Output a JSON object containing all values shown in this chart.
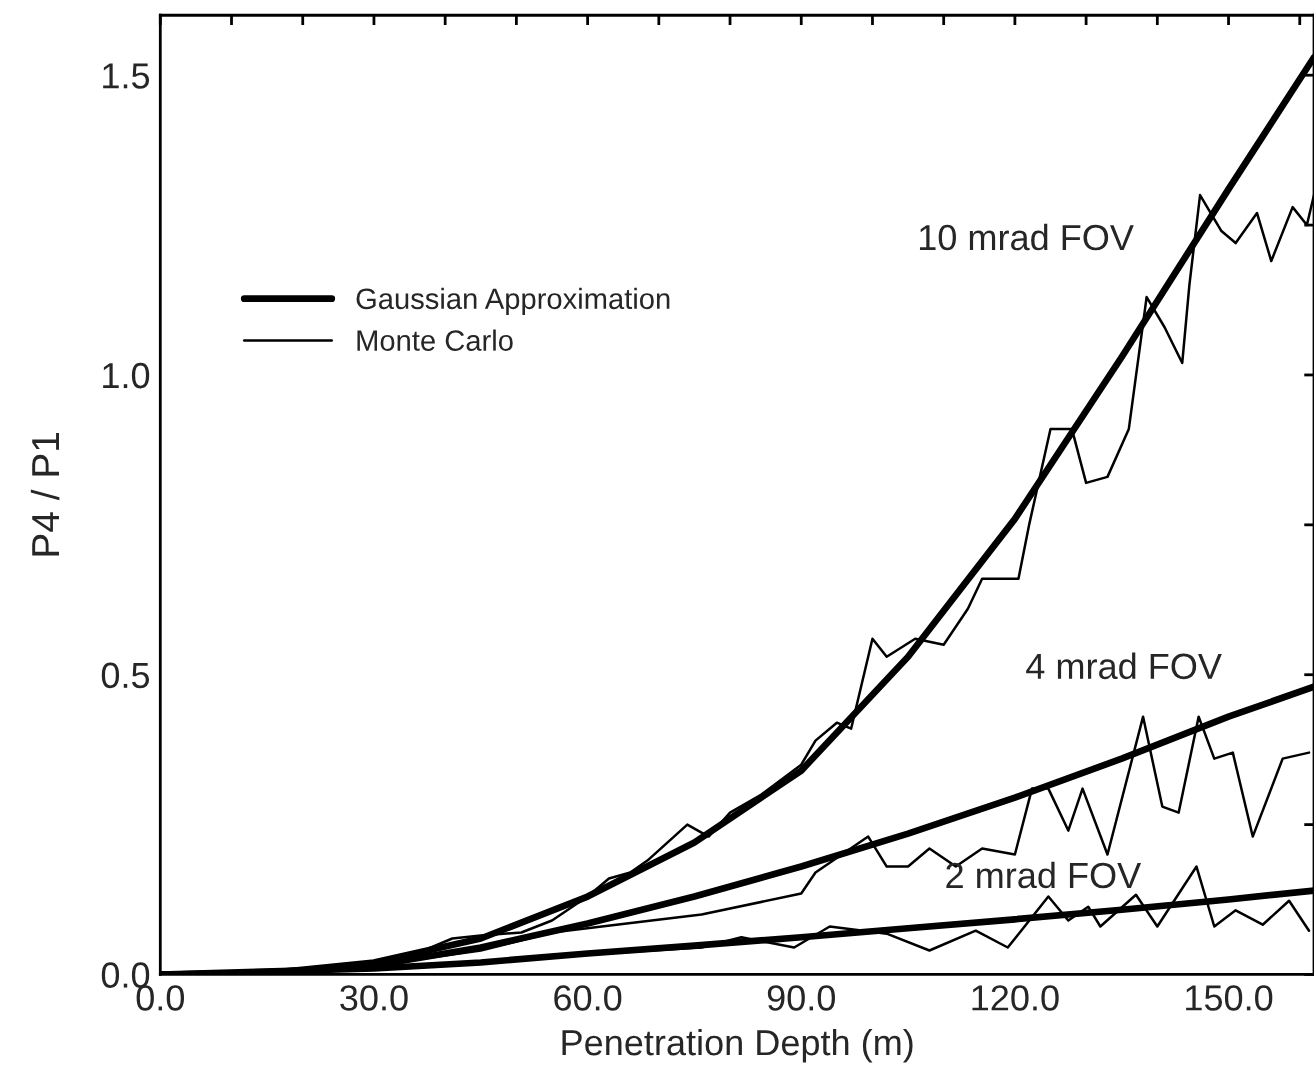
{
  "chart_data": {
    "type": "line",
    "xlabel": "Penetration Depth (m)",
    "ylabel": "P4 / P1",
    "xlim": [
      0,
      162
    ],
    "ylim": [
      0,
      1.6
    ],
    "xticks": [
      {
        "value": 0,
        "label": "0.0"
      },
      {
        "value": 10,
        "label": null
      },
      {
        "value": 20,
        "label": null
      },
      {
        "value": 30,
        "label": "30.0"
      },
      {
        "value": 40,
        "label": null
      },
      {
        "value": 50,
        "label": null
      },
      {
        "value": 60,
        "label": "60.0"
      },
      {
        "value": 70,
        "label": null
      },
      {
        "value": 80,
        "label": null
      },
      {
        "value": 90,
        "label": "90.0"
      },
      {
        "value": 100,
        "label": null
      },
      {
        "value": 110,
        "label": null
      },
      {
        "value": 120,
        "label": "120.0"
      },
      {
        "value": 130,
        "label": null
      },
      {
        "value": 140,
        "label": null
      },
      {
        "value": 150,
        "label": "150.0"
      },
      {
        "value": 160,
        "label": null
      }
    ],
    "yticks": [
      {
        "value": 0,
        "label": "0.0"
      },
      {
        "value": 0.25,
        "label": null
      },
      {
        "value": 0.5,
        "label": "0.5"
      },
      {
        "value": 0.75,
        "label": null
      },
      {
        "value": 1.0,
        "label": "1.0"
      },
      {
        "value": 1.25,
        "label": null
      },
      {
        "value": 1.5,
        "label": "1.5"
      }
    ],
    "legend": "left",
    "grid": false,
    "line_style": "solid",
    "marker": "none",
    "annotations": [
      "10 mrad FOV",
      "4 mrad FOV",
      "2 mrad FOV"
    ],
    "series": [
      {
        "name": "Gaussian Approximation",
        "color": "#000000",
        "x": [
          0,
          15,
          30,
          45,
          60,
          75,
          90,
          105,
          120,
          135,
          150,
          162
        ],
        "values": [
          0,
          0.002,
          0.02,
          0.06,
          0.13,
          0.22,
          0.34,
          0.53,
          0.76,
          1.03,
          1.31,
          1.53
        ]
      },
      {
        "name": "Monte Carlo",
        "color": "#000000",
        "x": [
          0,
          15,
          30,
          37,
          41,
          45,
          50.7,
          55,
          60,
          63,
          66,
          68.4,
          74,
          77,
          80,
          84.4,
          90,
          92,
          95,
          97,
          100,
          102,
          106,
          110,
          113.4,
          115.4,
          120.5,
          122,
          125,
          128,
          130,
          133,
          136,
          138.5,
          141,
          143.5,
          144.5,
          146,
          149,
          151,
          154,
          156,
          159,
          161,
          162
        ],
        "values": [
          0,
          0.002,
          0.02,
          0.04,
          0.06,
          0.065,
          0.07,
          0.09,
          0.13,
          0.16,
          0.17,
          0.19,
          0.25,
          0.23,
          0.27,
          0.3,
          0.35,
          0.39,
          0.42,
          0.41,
          0.56,
          0.53,
          0.56,
          0.55,
          0.61,
          0.66,
          0.66,
          0.75,
          0.91,
          0.91,
          0.82,
          0.83,
          0.91,
          1.13,
          1.08,
          1.02,
          1.15,
          1.3,
          1.24,
          1.22,
          1.27,
          1.19,
          1.28,
          1.25,
          1.3
        ]
      },
      {
        "color": "#000000",
        "x": [
          0,
          15,
          30,
          45,
          60,
          75,
          90,
          105,
          120,
          135,
          150,
          162
        ],
        "values": [
          0,
          0.002,
          0.015,
          0.045,
          0.085,
          0.13,
          0.18,
          0.235,
          0.295,
          0.36,
          0.43,
          0.48
        ]
      },
      {
        "color": "#000000",
        "x": [
          0,
          30,
          45,
          55,
          62,
          76,
          90,
          92,
          99.4,
          102,
          105,
          108,
          111.7,
          115.4,
          120,
          122.4,
          124.7,
          127.5,
          129.5,
          133,
          138,
          140.7,
          143,
          145.8,
          148,
          150.6,
          153.4,
          157.6,
          161.3
        ],
        "values": [
          0,
          0.015,
          0.04,
          0.07,
          0.08,
          0.1,
          0.135,
          0.17,
          0.23,
          0.18,
          0.18,
          0.21,
          0.18,
          0.21,
          0.2,
          0.31,
          0.31,
          0.24,
          0.31,
          0.2,
          0.43,
          0.28,
          0.27,
          0.43,
          0.36,
          0.37,
          0.23,
          0.36,
          0.37
        ]
      },
      {
        "color": "#000000",
        "x": [
          0,
          30,
          45,
          60,
          75,
          90,
          105,
          120,
          135,
          150,
          162
        ],
        "values": [
          0,
          0.01,
          0.02,
          0.035,
          0.048,
          0.062,
          0.077,
          0.092,
          0.108,
          0.125,
          0.14
        ]
      },
      {
        "color": "#000000",
        "x": [
          0,
          30,
          45,
          62,
          76,
          81.6,
          89,
          94,
          102,
          108,
          114.5,
          119,
          124.7,
          127.5,
          130.3,
          132,
          137,
          140,
          145.5,
          148,
          151,
          154.8,
          158.5,
          161.3
        ],
        "values": [
          0,
          0.01,
          0.02,
          0.035,
          0.045,
          0.062,
          0.045,
          0.08,
          0.068,
          0.04,
          0.073,
          0.045,
          0.13,
          0.09,
          0.113,
          0.08,
          0.133,
          0.08,
          0.18,
          0.08,
          0.107,
          0.083,
          0.123,
          0.073
        ]
      }
    ]
  }
}
